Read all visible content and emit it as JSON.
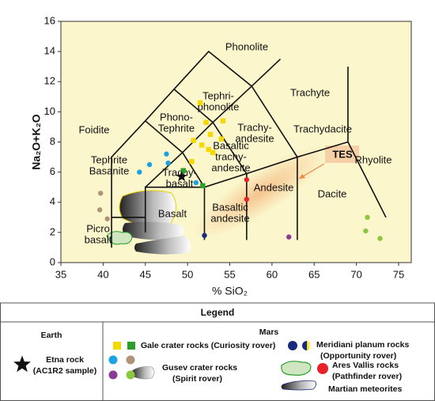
{
  "chart_data": {
    "type": "scatter",
    "xlabel": "% SiO₂",
    "ylabel": "Na₂O+K₂O",
    "xlim": [
      35,
      75
    ],
    "ylim": [
      0,
      16
    ],
    "xticks": [
      35,
      40,
      45,
      50,
      55,
      60,
      65,
      70,
      75
    ],
    "yticks": [
      0,
      2,
      4,
      6,
      8,
      10,
      12,
      14,
      16
    ],
    "background": "#fbf6cc",
    "fields": [
      [
        "Phonolite"
      ],
      [
        "Tephri-",
        "phonolite"
      ],
      [
        "Trachyte"
      ],
      [
        "Foidite"
      ],
      [
        "Phono-",
        "Tephrite"
      ],
      [
        "Trachy-",
        "andesite"
      ],
      [
        "Trachydacite"
      ],
      [
        "Rhyolite"
      ],
      [
        "Basaltic",
        "trachy-",
        "andesite"
      ],
      [
        "Tephrite",
        "Basanite"
      ],
      [
        "Trachy-",
        "basalt"
      ],
      [
        "Basalt"
      ],
      [
        "Basaltic",
        "andesite"
      ],
      [
        "Andesite"
      ],
      [
        "Dacite"
      ],
      [
        "Picro",
        "basalt"
      ],
      [
        "TES"
      ]
    ],
    "boundaries": [
      {
        "x": [
          41,
          41,
          45,
          48.4,
          52.5,
          57.6
        ],
        "y": [
          1,
          7,
          9.4,
          11.5,
          14,
          11.7
        ]
      },
      {
        "x": [
          57.6,
          61
        ],
        "y": [
          11.7,
          13.5
        ]
      },
      {
        "x": [
          45,
          49.4,
          53,
          57.6,
          63
        ],
        "y": [
          5,
          7.3,
          9.3,
          11.7,
          7
        ]
      },
      {
        "x": [
          41,
          45
        ],
        "y": [
          3,
          3
        ]
      },
      {
        "x": [
          45,
          45,
          52,
          57,
          63,
          69
        ],
        "y": [
          2,
          5,
          5,
          5.9,
          7,
          8
        ]
      },
      {
        "x": [
          52,
          52
        ],
        "y": [
          1.5,
          5
        ]
      },
      {
        "x": [
          57,
          57
        ],
        "y": [
          1.5,
          5.9
        ]
      },
      {
        "x": [
          63,
          63
        ],
        "y": [
          1.5,
          7
        ]
      },
      {
        "x": [
          49.4,
          52
        ],
        "y": [
          7.3,
          5
        ]
      },
      {
        "x": [
          53,
          57
        ],
        "y": [
          9.3,
          5.9
        ]
      },
      {
        "x": [
          69,
          69,
          73.5
        ],
        "y": [
          13,
          8,
          3
        ]
      },
      {
        "x": [
          48.4,
          53
        ],
        "y": [
          11.5,
          9.3
        ]
      },
      {
        "x": [
          45,
          49.4
        ],
        "y": [
          9.4,
          7.3
        ]
      }
    ],
    "series": [
      {
        "marker": "square",
        "color": "#f5d800",
        "x": [
          51.5,
          52.2,
          54.2,
          52.7,
          54,
          50.7,
          52.5,
          51.7,
          53,
          50.5
        ],
        "y": [
          10.6,
          9.3,
          9.4,
          8.5,
          8.2,
          8.1,
          7.5,
          7.8,
          7.3,
          6.7
        ]
      },
      {
        "marker": "square",
        "color": "#2aa02a",
        "x": [
          49.5,
          51.8
        ],
        "y": [
          6.1,
          5.1
        ]
      },
      {
        "marker": "circle",
        "color": "#1aa3e0",
        "x": [
          44.3,
          45.5,
          47.5,
          47.7,
          51
        ],
        "y": [
          6,
          6.5,
          7.2,
          6.6,
          5.3
        ]
      },
      {
        "marker": "circle",
        "color": "#b09478",
        "x": [
          39.7,
          39.6,
          40.5
        ],
        "y": [
          4.6,
          3.5,
          2.9
        ]
      },
      {
        "marker": "circle",
        "color": "#8b3a96",
        "x": [
          62
        ],
        "y": [
          1.7
        ]
      },
      {
        "marker": "circle",
        "color": "#8dc63f",
        "x": [
          71.3,
          71.1,
          72.8
        ],
        "y": [
          3,
          2.1,
          1.6
        ]
      },
      {
        "marker": "circle",
        "color": "#1a2a7a",
        "x": [
          52
        ],
        "y": [
          1.8
        ]
      },
      {
        "marker": "circle",
        "color": "#e8202a",
        "x": [
          57,
          57
        ],
        "y": [
          5.5,
          4.2
        ]
      },
      {
        "marker": "star",
        "color": "#111111",
        "x": [
          49.3
        ],
        "y": [
          5.7
        ]
      }
    ],
    "legend": {
      "title": "Legend",
      "earth": {
        "heading": "Earth",
        "entries": [
          [
            "Etna rock",
            "(AC1R2 sample)"
          ]
        ]
      },
      "mars": {
        "heading": "Mars",
        "entries": [
          [
            "Gale  crater rocks (Curiosity rover)"
          ],
          [
            "Gusev  crater rocks",
            "(Spirit rover)"
          ],
          [
            "Meridiani planum rocks",
            "(Opportunity rover)"
          ],
          [
            "Ares Vallis rocks",
            "(Pathfinder rover)"
          ],
          [
            "Martian meteorites"
          ]
        ]
      }
    }
  }
}
